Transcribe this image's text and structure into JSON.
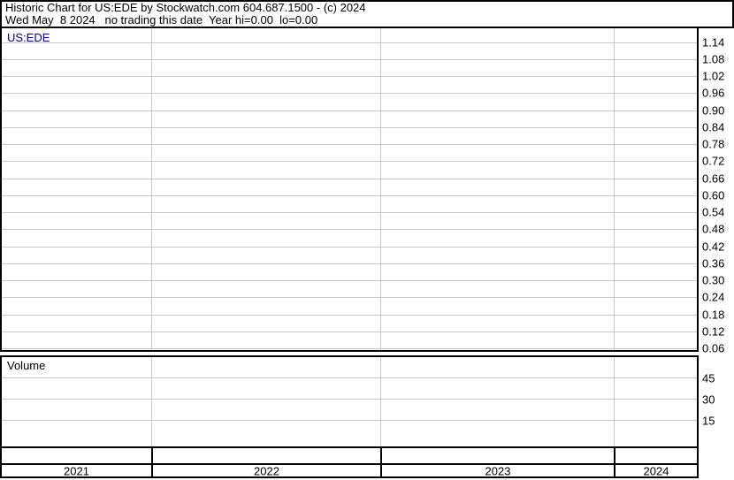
{
  "header": {
    "title": "Historic Chart for US:EDE by Stockwatch.com 604.687.1500 - (c) 2024",
    "subtitle": "Wed May  8 2024   no trading this date  Year hi=0.00  lo=0.00"
  },
  "price_pane": {
    "symbol_label": "US:EDE",
    "tick_labels": [
      "1.14",
      "1.08",
      "1.02",
      "0.96",
      "0.90",
      "0.84",
      "0.78",
      "0.72",
      "0.66",
      "0.60",
      "0.54",
      "0.48",
      "0.42",
      "0.36",
      "0.30",
      "0.24",
      "0.18",
      "0.12",
      "0.06"
    ]
  },
  "volume_pane": {
    "label": "Volume",
    "tick_labels": [
      "45",
      "30",
      "15"
    ]
  },
  "x_axis": {
    "year_labels": [
      "2021",
      "2022",
      "2023",
      "2024"
    ]
  },
  "colors": {
    "background": "#ffffff",
    "border": "#000000",
    "gridline": "#c9c9c9",
    "symbol_label_text": "#000080",
    "text": "#000000"
  },
  "chart_data": {
    "type": "line",
    "title": "Historic Chart for US:EDE",
    "status_text": "Wed May  8 2024   no trading this date  Year hi=0.00  lo=0.00",
    "x": {
      "tick_labels": [
        "2021",
        "2022",
        "2023",
        "2024"
      ]
    },
    "price_axis": {
      "side": "right",
      "ticks": [
        1.14,
        1.08,
        1.02,
        0.96,
        0.9,
        0.84,
        0.78,
        0.72,
        0.66,
        0.6,
        0.54,
        0.48,
        0.42,
        0.36,
        0.3,
        0.24,
        0.18,
        0.12,
        0.06
      ]
    },
    "volume_axis": {
      "side": "right",
      "ticks": [
        45,
        30,
        15
      ]
    },
    "series": [],
    "grid": true,
    "note": "Chart panes are empty: no price or volume data plotted (Year hi=0.00, lo=0.00)."
  }
}
